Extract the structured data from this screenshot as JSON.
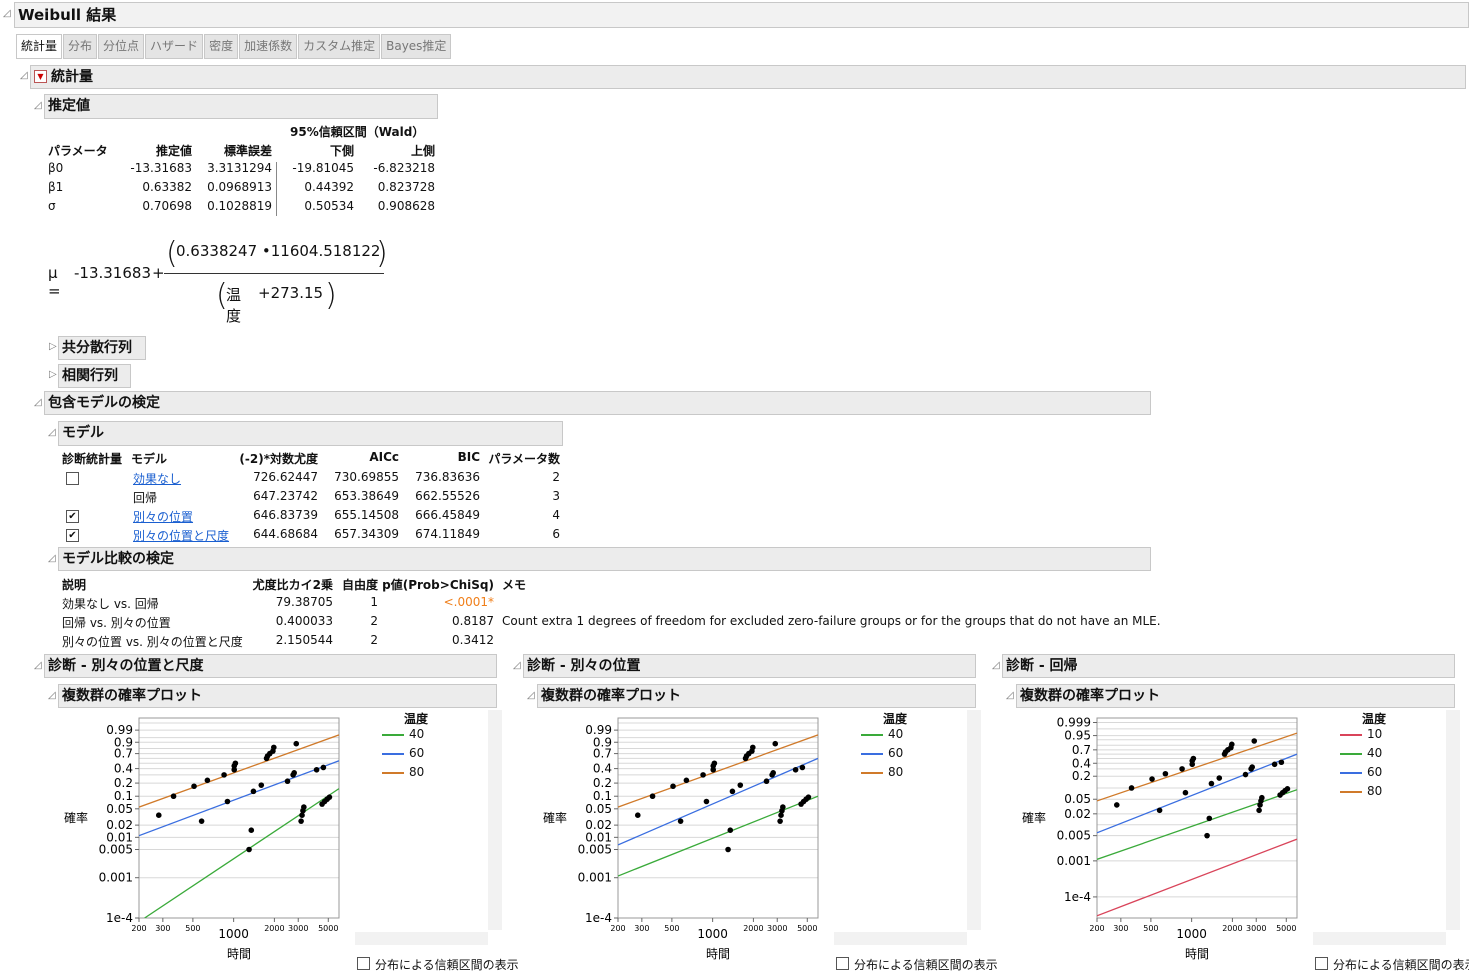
{
  "title": "Weibull 結果",
  "tabs": [
    "統計量",
    "分布",
    "分位点",
    "ハザード",
    "密度",
    "加速係数",
    "カスタム推定",
    "Bayes推定"
  ],
  "stats_title": "統計量",
  "estimates": {
    "title": "推定値",
    "ci_header": "95%信頼区間（Wald）",
    "columns": [
      "パラメータ",
      "推定値",
      "標準誤差",
      "下側",
      "上側"
    ],
    "rows": [
      [
        "β0",
        "-13.31683",
        "3.3131294",
        "-19.81045",
        "-6.823218"
      ],
      [
        "β1",
        "0.63382",
        "0.0968913",
        "0.44392",
        "0.823728"
      ],
      [
        "σ",
        "0.70698",
        "0.1028819",
        "0.50534",
        "0.908628"
      ]
    ]
  },
  "formula": {
    "mu": "μ =",
    "intercept": "-13.31683",
    "plus": "+",
    "numerator": "0.6338247 •11604.518122",
    "den_var": "温度",
    "den_const": "+273.15"
  },
  "cov_title": "共分散行列",
  "corr_title": "相関行列",
  "nested_title": "包含モデルの検定",
  "model": {
    "title": "モデル",
    "columns": [
      "診断統計量",
      "モデル",
      "(-2)*対数尤度",
      "AICc",
      "BIC",
      "パラメータ数"
    ],
    "rows": [
      {
        "checked": false,
        "has_box": true,
        "link": true,
        "name": "効果なし",
        "v": [
          "726.62447",
          "730.69855",
          "736.83636",
          "2"
        ]
      },
      {
        "checked": false,
        "has_box": false,
        "link": false,
        "name": "回帰",
        "v": [
          "647.23742",
          "653.38649",
          "662.55526",
          "3"
        ]
      },
      {
        "checked": true,
        "has_box": true,
        "link": true,
        "name": "別々の位置",
        "v": [
          "646.83739",
          "655.14508",
          "666.45849",
          "4"
        ]
      },
      {
        "checked": true,
        "has_box": true,
        "link": true,
        "name": "別々の位置と尺度",
        "v": [
          "644.68684",
          "657.34309",
          "674.11849",
          "6"
        ]
      }
    ]
  },
  "compare": {
    "title": "モデル比較の検定",
    "columns": [
      "説明",
      "尤度比カイ2乗",
      "自由度",
      "p値(Prob>ChiSq)",
      "メモ"
    ],
    "rows": [
      [
        "効果なし vs. 回帰",
        "79.38705",
        "1",
        "<.0001*",
        ""
      ],
      [
        "回帰 vs. 別々の位置",
        "0.400033",
        "2",
        "0.8187",
        "Count extra 1 degrees of freedom for excluded zero-failure groups or for the groups that do not have an MLE."
      ],
      [
        "別々の位置 vs. 別々の位置と尺度",
        "2.150544",
        "2",
        "0.3412",
        ""
      ]
    ],
    "sig_color": "#f07f1a"
  },
  "colors": {
    "10": "#d9445a",
    "40": "#3aaa3a",
    "60": "#3a6ee0",
    "80": "#d07a2a"
  },
  "diagnostics": [
    {
      "title": "診断 - 別々の位置と尺度",
      "subtitle": "複数群の確率プロット"
    },
    {
      "title": "診断 - 別々の位置",
      "subtitle": "複数群の確率プロット"
    },
    {
      "title": "診断 - 回帰",
      "subtitle": "複数群の確率プロット"
    }
  ],
  "checkbox_label": "分布による信頼区間の表示",
  "chart_data": [
    {
      "type": "line",
      "xlabel": "時間",
      "ylabel": "確率",
      "legend_title": "温度",
      "x_scale": "log",
      "y_scale": "weibull",
      "xlim": [
        200,
        6000
      ],
      "ylim": [
        0.0001,
        0.9999
      ],
      "xticks": [
        "200",
        "300",
        "500",
        "1000",
        "2000",
        "3000",
        "5000"
      ],
      "yticks": [
        "0.99",
        "0.9",
        "0.7",
        "0.4",
        "0.2",
        "0.1",
        "0.05",
        "0.02",
        "0.01",
        "0.005",
        "0.001",
        "1e-4"
      ],
      "series": [
        {
          "name": "40",
          "line": [
            [
              220,
              0.0001
            ],
            [
              6000,
              0.15
            ]
          ]
        },
        {
          "name": "60",
          "line": [
            [
              200,
              0.011
            ],
            [
              6000,
              0.55
            ]
          ]
        },
        {
          "name": "80",
          "line": [
            [
              200,
              0.055
            ],
            [
              6000,
              0.97
            ]
          ]
        }
      ]
    },
    {
      "type": "line",
      "xlabel": "時間",
      "ylabel": "確率",
      "legend_title": "温度",
      "x_scale": "log",
      "y_scale": "weibull",
      "xlim": [
        200,
        6000
      ],
      "ylim": [
        0.0001,
        0.9999
      ],
      "xticks": [
        "200",
        "300",
        "500",
        "1000",
        "2000",
        "3000",
        "5000"
      ],
      "yticks": [
        "0.99",
        "0.9",
        "0.7",
        "0.4",
        "0.2",
        "0.1",
        "0.05",
        "0.02",
        "0.01",
        "0.005",
        "0.001",
        "1e-4"
      ],
      "series": [
        {
          "name": "40",
          "line": [
            [
              200,
              0.0011
            ],
            [
              6000,
              0.1
            ]
          ]
        },
        {
          "name": "60",
          "line": [
            [
              200,
              0.0065
            ],
            [
              6000,
              0.6
            ]
          ]
        },
        {
          "name": "80",
          "line": [
            [
              200,
              0.055
            ],
            [
              6000,
              0.97
            ]
          ]
        }
      ]
    },
    {
      "type": "line",
      "xlabel": "時間",
      "ylabel": "確率",
      "legend_title": "温度",
      "x_scale": "log",
      "y_scale": "weibull",
      "xlim": [
        200,
        6000
      ],
      "ylim": [
        2.6e-05,
        0.9999
      ],
      "xticks": [
        "200",
        "300",
        "500",
        "1000",
        "2000",
        "3000",
        "5000"
      ],
      "yticks": [
        "0.999",
        "0.95",
        "0.7",
        "0.4",
        "0.2",
        "0.05",
        "0.02",
        "0.005",
        "0.001",
        "1e-4"
      ],
      "series": [
        {
          "name": "10",
          "line": [
            [
              200,
              3e-05
            ],
            [
              6000,
              0.004
            ]
          ]
        },
        {
          "name": "40",
          "line": [
            [
              200,
              0.0011
            ],
            [
              6000,
              0.09
            ]
          ]
        },
        {
          "name": "60",
          "line": [
            [
              200,
              0.006
            ],
            [
              6000,
              0.6
            ]
          ]
        },
        {
          "name": "80",
          "line": [
            [
              200,
              0.045
            ],
            [
              6000,
              0.97
            ]
          ]
        }
      ]
    }
  ],
  "points": [
    [
      280,
      0.035
    ],
    [
      360,
      0.1
    ],
    [
      510,
      0.17
    ],
    [
      640,
      0.23
    ],
    [
      850,
      0.3
    ],
    [
      1010,
      0.38
    ],
    [
      1010,
      0.45
    ],
    [
      1030,
      0.5
    ],
    [
      1750,
      0.6
    ],
    [
      1780,
      0.65
    ],
    [
      1850,
      0.7
    ],
    [
      1950,
      0.75
    ],
    [
      1980,
      0.82
    ],
    [
      2900,
      0.88
    ],
    [
      580,
      0.025
    ],
    [
      900,
      0.075
    ],
    [
      1400,
      0.13
    ],
    [
      1600,
      0.18
    ],
    [
      2500,
      0.22
    ],
    [
      2750,
      0.3
    ],
    [
      2800,
      0.33
    ],
    [
      4100,
      0.38
    ],
    [
      4600,
      0.42
    ],
    [
      1300,
      0.005
    ],
    [
      1350,
      0.015
    ],
    [
      3150,
      0.025
    ],
    [
      3200,
      0.035
    ],
    [
      3250,
      0.045
    ],
    [
      3300,
      0.055
    ],
    [
      4500,
      0.065
    ],
    [
      4700,
      0.075
    ],
    [
      4900,
      0.085
    ],
    [
      5100,
      0.095
    ]
  ]
}
